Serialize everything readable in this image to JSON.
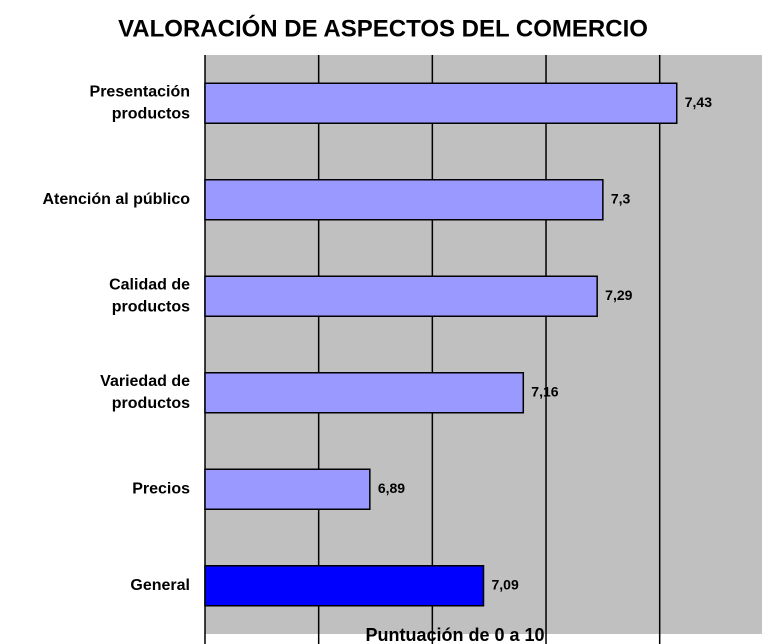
{
  "chart_data": {
    "type": "barh",
    "title": "VALORACIÓN DE ASPECTOS DEL COMERCIO",
    "xlabel": "Puntuación de 0 a 10",
    "categories": [
      [
        "Presentación",
        "productos"
      ],
      [
        "Atención al público"
      ],
      [
        "Calidad de",
        "productos"
      ],
      [
        "Variedad de",
        "productos"
      ],
      [
        "Precios"
      ],
      [
        "General"
      ]
    ],
    "values": [
      7.43,
      7.3,
      7.29,
      7.16,
      6.89,
      7.09
    ],
    "value_labels": [
      "7,43",
      "7,3",
      "7,29",
      "7,16",
      "6,89",
      "7,09"
    ],
    "colors": [
      "#9999ff",
      "#9999ff",
      "#9999ff",
      "#9999ff",
      "#9999ff",
      "#0000ff"
    ],
    "xlim": [
      6.6,
      7.58
    ],
    "xticks": [
      6.8,
      7.0,
      7.2,
      7.4
    ],
    "grid": true,
    "background": "#c0c0c0"
  }
}
